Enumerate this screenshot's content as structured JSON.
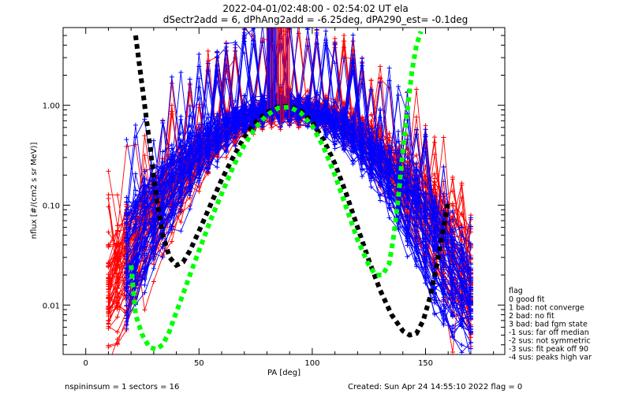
{
  "chart_data": {
    "type": "scatter",
    "title_line1": "2022-04-01/02:48:00 - 02:54:02 UT ela",
    "title_line2": "dSectr2add = 6, dPhAng2add = -6.25deg, dPA290_est=  -0.1deg",
    "xlabel": "PA [deg]",
    "ylabel": "nflux [#/(cm2 s sr MeV)]",
    "xlim": [
      -10,
      185
    ],
    "ylim": [
      0.0032,
      6.0
    ],
    "yscale": "log",
    "x_ticks": [
      0,
      50,
      100,
      150
    ],
    "x_tick_labels": [
      "0",
      "50",
      "100",
      "150"
    ],
    "y_ticks": [
      0.01,
      0.1,
      1.0
    ],
    "y_tick_labels": [
      "0.01",
      "0.10",
      "1.00"
    ],
    "colors": {
      "red_series": "#ff0000",
      "blue_series": "#0000ff",
      "fit_black": "#000000",
      "fit_green": "#00ff00"
    },
    "series": [
      {
        "color": "#ff0000",
        "kind": "lines+markers",
        "peak_pa": 90,
        "peak_flux": 0.95,
        "pa_min": 10,
        "pa_max": 170,
        "count": 60
      },
      {
        "color": "#0000ff",
        "kind": "lines+markers",
        "peak_pa": 88,
        "peak_flux": 0.95,
        "pa_min": 20,
        "pa_max": 170,
        "count": 60
      },
      {
        "color": "#000000",
        "kind": "dashed-fit",
        "x": [
          22,
          25,
          28,
          31,
          34,
          37,
          40,
          43,
          46,
          50,
          55,
          60,
          65,
          70,
          75,
          80,
          85,
          90,
          95,
          100,
          105,
          110,
          115,
          120,
          125,
          130,
          135,
          140,
          143,
          146,
          149,
          152,
          155,
          158,
          160
        ],
        "y": [
          5.0,
          1.5,
          0.45,
          0.13,
          0.05,
          0.03,
          0.025,
          0.027,
          0.035,
          0.055,
          0.1,
          0.18,
          0.3,
          0.48,
          0.68,
          0.85,
          0.96,
          0.98,
          0.88,
          0.68,
          0.45,
          0.26,
          0.13,
          0.06,
          0.028,
          0.014,
          0.008,
          0.0055,
          0.005,
          0.0052,
          0.007,
          0.012,
          0.025,
          0.06,
          0.11
        ]
      },
      {
        "color": "#00ff00",
        "kind": "dashed-fit",
        "x": [
          20,
          22,
          25,
          28,
          31,
          34,
          37,
          40,
          43,
          46,
          50,
          55,
          60,
          65,
          70,
          75,
          80,
          85,
          90,
          95,
          100,
          105,
          110,
          115,
          120,
          125,
          128,
          131,
          134,
          136,
          138,
          140,
          142,
          144,
          146,
          148
        ],
        "y": [
          0.025,
          0.008,
          0.005,
          0.0038,
          0.0036,
          0.004,
          0.0055,
          0.0085,
          0.013,
          0.02,
          0.035,
          0.07,
          0.13,
          0.24,
          0.4,
          0.6,
          0.8,
          0.94,
          0.96,
          0.84,
          0.62,
          0.38,
          0.2,
          0.095,
          0.045,
          0.025,
          0.02,
          0.02,
          0.026,
          0.05,
          0.12,
          0.35,
          0.9,
          2.2,
          4.0,
          5.5
        ]
      }
    ],
    "legend_title": "flag",
    "legend": [
      " 0 good fit",
      " 1 bad: not converge",
      " 2 bad: no fit",
      " 3 bad: bad fgm state",
      "-1 sus: far off median",
      "-2 sus: not symmetric",
      "-3 sus: fit peak off 90",
      "-4 sus: peaks high var"
    ]
  },
  "footer": {
    "left": "nspininsum =  1  sectors = 16",
    "right": "Created: Sun Apr 24 14:55:10 2022   flag = 0"
  }
}
